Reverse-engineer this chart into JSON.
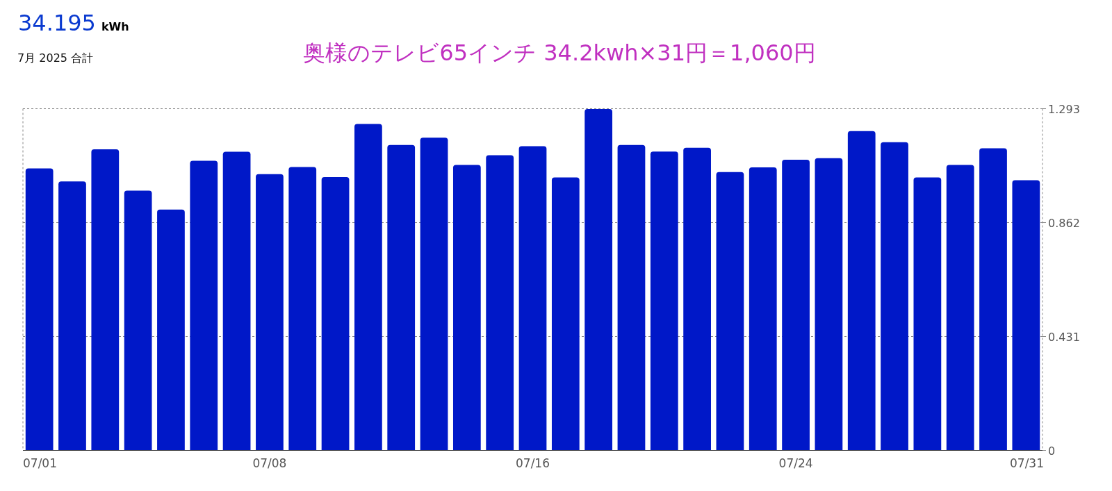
{
  "chart_data": {
    "type": "bar",
    "title": "奥様のテレビ65インチ 34.2kwh×31円＝1,060円",
    "annotations": [
      "34.195",
      "kWh",
      "7月 2025 合計"
    ],
    "categories": [
      "07/01",
      null,
      null,
      null,
      null,
      null,
      null,
      "07/08",
      null,
      null,
      null,
      null,
      null,
      null,
      null,
      "07/16",
      null,
      null,
      null,
      null,
      null,
      null,
      null,
      "07/24",
      null,
      null,
      null,
      null,
      null,
      null,
      "07/31"
    ],
    "values": [
      1.067,
      1.018,
      1.139,
      0.983,
      0.911,
      1.096,
      1.13,
      1.045,
      1.072,
      1.034,
      1.235,
      1.156,
      1.183,
      1.08,
      1.117,
      1.151,
      1.033,
      1.292,
      1.156,
      1.131,
      1.145,
      1.053,
      1.071,
      1.1,
      1.106,
      1.208,
      1.166,
      1.033,
      1.08,
      1.143,
      1.022
    ],
    "color": "#0018c8",
    "ylim": [
      0,
      1.293
    ],
    "yticks": [
      0,
      0.431,
      0.862,
      1.293
    ],
    "grid": "y"
  }
}
